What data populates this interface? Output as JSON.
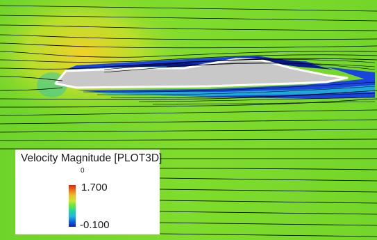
{
  "legend": {
    "title": "Velocity Magnitude [PLOT3D]",
    "subtitle": "0",
    "max_label": "1.700",
    "min_label": "-0.100",
    "colormap": [
      "#e02010",
      "#f07010",
      "#f0c020",
      "#c8e830",
      "#60e840",
      "#20d8a0",
      "#20b8e8",
      "#1060e0",
      "#1020b0"
    ]
  },
  "colors": {
    "freestream": "#7ad82a",
    "stagnation": "#f0e030",
    "recirculation": "#1840e0",
    "body_fill": "#c8c8c8",
    "body_outline": "#ffffff",
    "streamline": "#000000"
  }
}
